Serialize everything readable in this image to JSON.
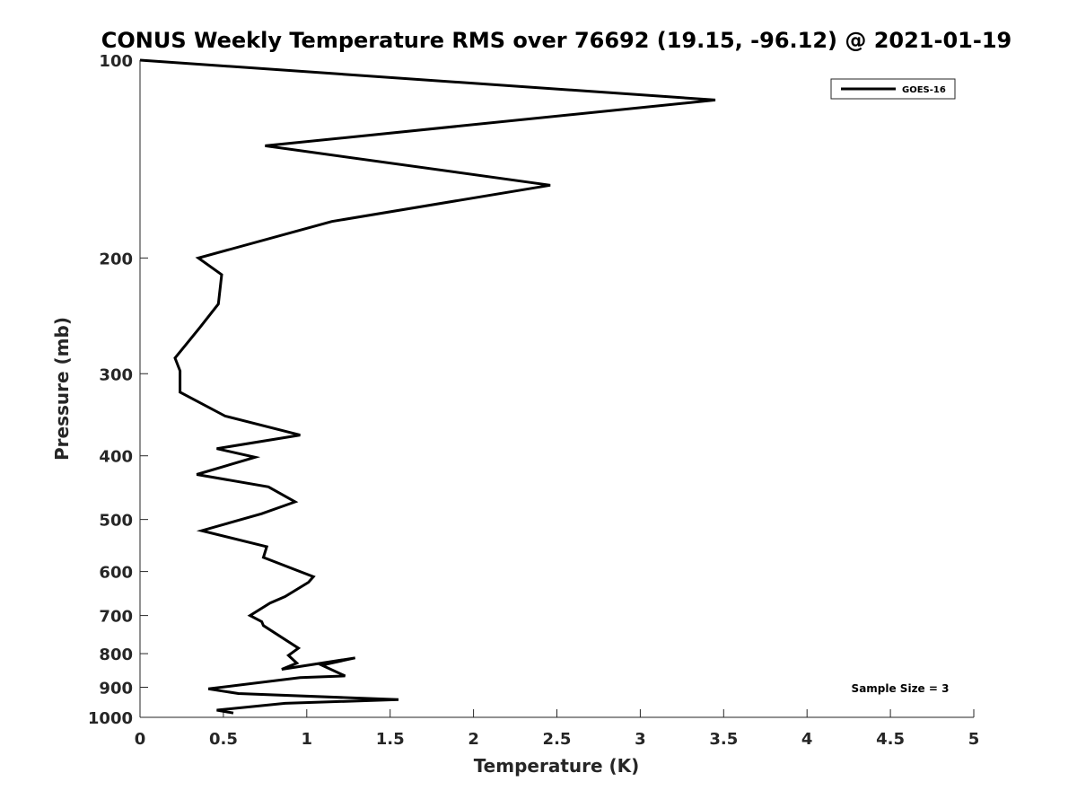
{
  "chart_data": {
    "type": "line",
    "title": "CONUS Weekly Temperature RMS over 76692 (19.15, -96.12) @ 2021-01-19",
    "xlabel": "Temperature (K)",
    "ylabel": "Pressure (mb)",
    "xlim": [
      0,
      5
    ],
    "ylim": [
      100,
      1000
    ],
    "y_scale": "log",
    "y_reversed": true,
    "xticks": [
      0,
      0.5,
      1,
      1.5,
      2,
      2.5,
      3,
      3.5,
      4,
      4.5,
      5
    ],
    "xtick_labels": [
      "0",
      "0.5",
      "1",
      "1.5",
      "2",
      "2.5",
      "3",
      "3.5",
      "4",
      "4.5",
      "5"
    ],
    "yticks": [
      100,
      200,
      300,
      400,
      500,
      600,
      700,
      800,
      900,
      1000
    ],
    "ytick_labels": [
      "100",
      "200",
      "300",
      "400",
      "500",
      "600",
      "700",
      "800",
      "900",
      "1000"
    ],
    "grid": false,
    "legend_position": "top-right",
    "series": [
      {
        "name": "GOES-16",
        "color": "#000000",
        "x": [
          0.0,
          3.45,
          0.75,
          2.46,
          1.15,
          0.35,
          0.49,
          0.47,
          0.36,
          0.21,
          0.24,
          0.24,
          0.51,
          0.96,
          0.46,
          0.69,
          0.34,
          0.77,
          0.93,
          0.73,
          0.37,
          0.76,
          0.74,
          1.04,
          1.01,
          0.87,
          0.78,
          0.66,
          0.73,
          0.74,
          0.95,
          0.89,
          0.94,
          0.85,
          1.29,
          1.09,
          1.23,
          0.96,
          0.41,
          0.59,
          1.55,
          0.87,
          0.46,
          0.56
        ],
        "y": [
          100,
          115,
          135,
          155,
          176,
          200,
          212,
          235,
          255,
          284,
          297,
          320,
          348,
          372,
          390,
          402,
          427,
          446,
          470,
          490,
          520,
          550,
          571,
          611,
          623,
          655,
          670,
          700,
          715,
          725,
          785,
          805,
          827,
          845,
          812,
          833,
          865,
          870,
          905,
          920,
          940,
          952,
          975,
          985
        ]
      }
    ],
    "annotation": "Sample Size = 3"
  }
}
